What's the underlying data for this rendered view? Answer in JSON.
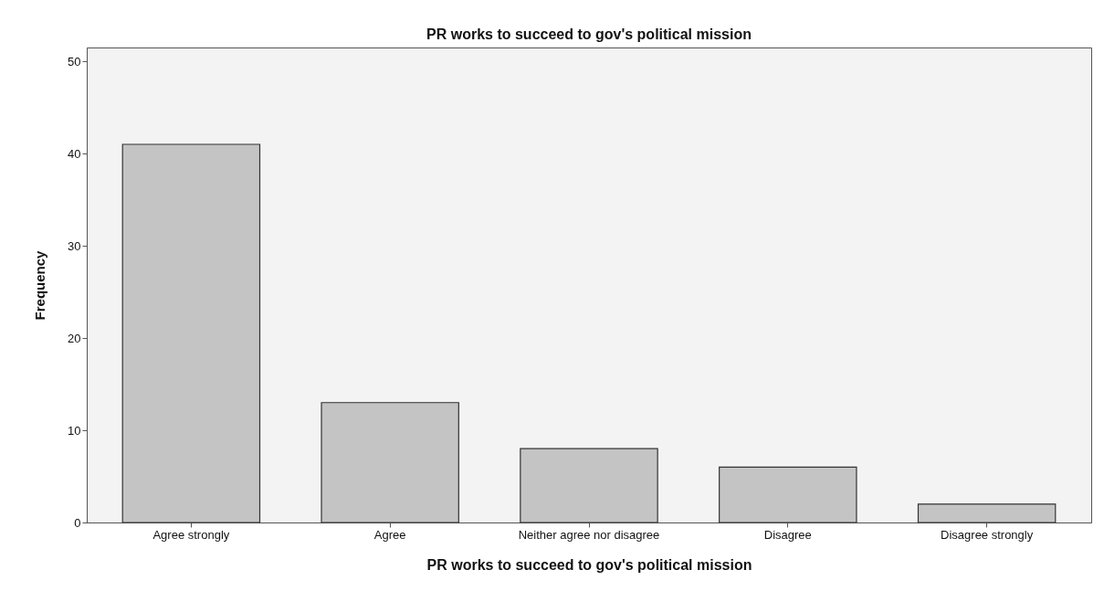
{
  "chart_data": {
    "type": "bar",
    "title": "PR works to succeed to gov's political mission",
    "xlabel": "PR works to succeed to gov's political mission",
    "ylabel": "Frequency",
    "categories": [
      "Agree strongly",
      "Agree",
      "Neither agree nor disagree",
      "Disagree",
      "Disagree strongly"
    ],
    "values": [
      41,
      13,
      8,
      6,
      2
    ],
    "color": "#c4c4c4",
    "ylim": [
      0,
      51.5
    ],
    "yticks": [
      0,
      10,
      20,
      30,
      40,
      50
    ],
    "grid": false
  }
}
